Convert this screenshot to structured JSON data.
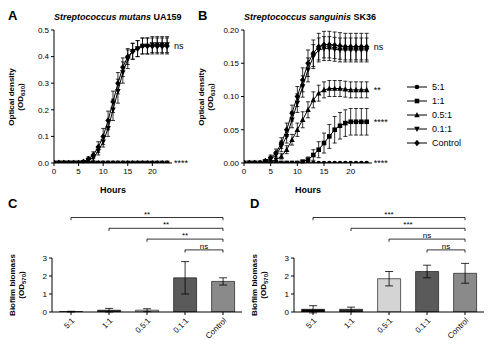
{
  "chart_data": [
    {
      "type": "line",
      "panel": "A",
      "title": "Streptococcus mutans UA159",
      "xlabel": "Hours",
      "ylabel": "Optical density (OD630)",
      "xlim": [
        0,
        24
      ],
      "xticks": [
        0,
        5,
        10,
        15,
        20
      ],
      "ylim": [
        0,
        0.5
      ],
      "yticks": [
        {
          "value": 0,
          "label": "0.0"
        },
        0.1,
        0.2,
        0.3,
        0.4,
        0.5
      ],
      "x": [
        0,
        1,
        2,
        3,
        4,
        5,
        6,
        7,
        8,
        9,
        10,
        11,
        12,
        13,
        14,
        15,
        16,
        17,
        18,
        19,
        20,
        21,
        22,
        23
      ],
      "series": [
        {
          "name": "5:1",
          "color": "#000000",
          "marker": "circle",
          "values": [
            0,
            0,
            0,
            0,
            0,
            0,
            0,
            0,
            0,
            0,
            0,
            0,
            0,
            0,
            0,
            0,
            0,
            0,
            0,
            0,
            0,
            0,
            0,
            0
          ],
          "errors": [
            0,
            0,
            0,
            0,
            0,
            0,
            0,
            0,
            0,
            0,
            0,
            0,
            0,
            0,
            0,
            0,
            0,
            0,
            0,
            0,
            0,
            0,
            0,
            0
          ]
        },
        {
          "name": "1:1",
          "color": "#000000",
          "marker": "square",
          "values": [
            0,
            0,
            0,
            0,
            0,
            0,
            0,
            0,
            0,
            0,
            0,
            0,
            0,
            0,
            0,
            0,
            0,
            0,
            0,
            0,
            0,
            0,
            0,
            0
          ],
          "errors": [
            0,
            0,
            0,
            0,
            0,
            0,
            0,
            0,
            0,
            0,
            0,
            0,
            0,
            0,
            0,
            0,
            0,
            0,
            0,
            0,
            0,
            0,
            0,
            0
          ]
        },
        {
          "name": "0.5:1",
          "color": "#000000",
          "marker": "triangle",
          "values": [
            0,
            0,
            0,
            0,
            0,
            0,
            0,
            0,
            0,
            0,
            0,
            0,
            0,
            0,
            0,
            0,
            0,
            0,
            0,
            0,
            0,
            0,
            0,
            0
          ],
          "errors": [
            0,
            0,
            0,
            0,
            0,
            0,
            0,
            0,
            0,
            0,
            0,
            0,
            0,
            0,
            0,
            0,
            0,
            0,
            0,
            0,
            0,
            0,
            0,
            0
          ]
        },
        {
          "name": "0.1:1",
          "color": "#000000",
          "marker": "triangle_down",
          "values": [
            0,
            0,
            0,
            0,
            0,
            0,
            0.003,
            0.01,
            0.02,
            0.045,
            0.08,
            0.13,
            0.2,
            0.27,
            0.34,
            0.39,
            0.42,
            0.43,
            0.44,
            0.44,
            0.445,
            0.445,
            0.445,
            0.445
          ],
          "errors": [
            0,
            0,
            0,
            0,
            0,
            0,
            0.002,
            0.005,
            0.01,
            0.015,
            0.02,
            0.03,
            0.04,
            0.045,
            0.04,
            0.035,
            0.03,
            0.03,
            0.03,
            0.03,
            0.03,
            0.03,
            0.03,
            0.03
          ]
        },
        {
          "name": "Control",
          "color": "#000000",
          "marker": "diamond",
          "values": [
            0,
            0,
            0,
            0,
            0,
            0,
            0.005,
            0.015,
            0.03,
            0.06,
            0.1,
            0.16,
            0.23,
            0.3,
            0.36,
            0.4,
            0.42,
            0.43,
            0.44,
            0.44,
            0.44,
            0.44,
            0.44,
            0.44
          ],
          "errors": [
            0,
            0,
            0,
            0,
            0,
            0,
            0.003,
            0.008,
            0.012,
            0.02,
            0.03,
            0.035,
            0.04,
            0.04,
            0.035,
            0.03,
            0.03,
            0.03,
            0.03,
            0.03,
            0.03,
            0.03,
            0.03,
            0.03
          ]
        }
      ],
      "annotations": [
        {
          "text": "ns",
          "x": 23,
          "y": 0.44
        },
        {
          "text": "****",
          "x": 23,
          "y": 0
        }
      ]
    },
    {
      "type": "line",
      "panel": "B",
      "title": "Streptococcus sanguinis SK36",
      "xlabel": "Hours",
      "ylabel": "Optical density (OD630)",
      "xlim": [
        0,
        24
      ],
      "xticks": [
        0,
        5,
        10,
        15,
        20
      ],
      "ylim": [
        0,
        0.2
      ],
      "yticks": [
        {
          "value": 0,
          "label": "0.00"
        },
        0.05,
        {
          "value": 0.1,
          "label": "0.10"
        },
        0.15,
        {
          "value": 0.2,
          "label": "0.20"
        }
      ],
      "legend": "right",
      "x": [
        0,
        1,
        2,
        3,
        4,
        5,
        6,
        7,
        8,
        9,
        10,
        11,
        12,
        13,
        14,
        15,
        16,
        17,
        18,
        19,
        20,
        21,
        22,
        23
      ],
      "series": [
        {
          "name": "5:1",
          "color": "#000000",
          "marker": "circle",
          "values": [
            0,
            0,
            0,
            0,
            0,
            0,
            0,
            0,
            0,
            0,
            0,
            0,
            0,
            0,
            0,
            0,
            0,
            0,
            0,
            0,
            0,
            0,
            0,
            0
          ],
          "errors": [
            0,
            0,
            0,
            0,
            0,
            0,
            0,
            0,
            0,
            0,
            0,
            0,
            0,
            0,
            0,
            0,
            0,
            0,
            0,
            0,
            0,
            0,
            0,
            0
          ]
        },
        {
          "name": "1:1",
          "color": "#000000",
          "marker": "square",
          "values": [
            0,
            0,
            0,
            0,
            0,
            0,
            0,
            0,
            0,
            0,
            0,
            0.002,
            0.005,
            0.012,
            0.02,
            0.03,
            0.04,
            0.05,
            0.056,
            0.06,
            0.062,
            0.062,
            0.062,
            0.062
          ],
          "errors": [
            0,
            0,
            0,
            0,
            0,
            0,
            0,
            0,
            0,
            0,
            0,
            0.002,
            0.004,
            0.008,
            0.012,
            0.015,
            0.018,
            0.02,
            0.02,
            0.02,
            0.02,
            0.02,
            0.02,
            0.02
          ]
        },
        {
          "name": "0.5:1",
          "color": "#000000",
          "marker": "triangle",
          "values": [
            0,
            0,
            0,
            0,
            0,
            0.002,
            0.005,
            0.01,
            0.02,
            0.035,
            0.05,
            0.065,
            0.08,
            0.095,
            0.105,
            0.11,
            0.112,
            0.112,
            0.112,
            0.111,
            0.11,
            0.11,
            0.11,
            0.11
          ],
          "errors": [
            0,
            0,
            0,
            0,
            0,
            0.001,
            0.002,
            0.004,
            0.006,
            0.008,
            0.01,
            0.012,
            0.012,
            0.012,
            0.012,
            0.012,
            0.012,
            0.012,
            0.012,
            0.012,
            0.012,
            0.012,
            0.012,
            0.012
          ]
        },
        {
          "name": "0.1:1",
          "color": "#000000",
          "marker": "triangle_down",
          "values": [
            0,
            0,
            0,
            0,
            0.002,
            0.006,
            0.012,
            0.025,
            0.04,
            0.065,
            0.09,
            0.115,
            0.14,
            0.16,
            0.17,
            0.172,
            0.172,
            0.171,
            0.17,
            0.17,
            0.17,
            0.17,
            0.17,
            0.17
          ],
          "errors": [
            0,
            0,
            0,
            0,
            0.001,
            0.003,
            0.005,
            0.008,
            0.01,
            0.012,
            0.014,
            0.016,
            0.018,
            0.018,
            0.018,
            0.018,
            0.018,
            0.018,
            0.018,
            0.018,
            0.018,
            0.018,
            0.018,
            0.018
          ]
        },
        {
          "name": "Control",
          "color": "#000000",
          "marker": "diamond",
          "values": [
            0,
            0,
            0,
            0,
            0.003,
            0.008,
            0.015,
            0.03,
            0.05,
            0.075,
            0.1,
            0.125,
            0.15,
            0.165,
            0.175,
            0.178,
            0.178,
            0.177,
            0.176,
            0.175,
            0.175,
            0.175,
            0.175,
            0.175
          ],
          "errors": [
            0,
            0,
            0,
            0,
            0.002,
            0.004,
            0.006,
            0.008,
            0.01,
            0.012,
            0.015,
            0.018,
            0.02,
            0.02,
            0.02,
            0.02,
            0.02,
            0.02,
            0.02,
            0.02,
            0.02,
            0.02,
            0.02,
            0.02
          ]
        }
      ],
      "annotations": [
        {
          "text": "ns",
          "x": 23,
          "y": 0.175
        },
        {
          "text": "**",
          "x": 23,
          "y": 0.11
        },
        {
          "text": "****",
          "x": 23,
          "y": 0.062
        },
        {
          "text": "****",
          "x": 23,
          "y": 0
        }
      ]
    },
    {
      "type": "bar",
      "panel": "C",
      "ylabel": "Biofilm biomass (OD570)",
      "categories": [
        "5:1",
        "1:1",
        "0.5:1",
        "0.1:1",
        "Control"
      ],
      "values": [
        0.02,
        0.1,
        0.1,
        1.9,
        1.7
      ],
      "errors": [
        0.02,
        0.1,
        0.08,
        0.9,
        0.2
      ],
      "colors": [
        "#000000",
        "#2b2b2b",
        "#d4d4d4",
        "#5a5a5a",
        "#8a8a8a"
      ],
      "ylim": [
        0,
        3
      ],
      "yticks": [
        0,
        1,
        2,
        3
      ],
      "comparisons": [
        {
          "from": "5:1",
          "to": "Control",
          "label": "**"
        },
        {
          "from": "1:1",
          "to": "Control",
          "label": "**"
        },
        {
          "from": "0.5:1",
          "to": "Control",
          "label": "**"
        },
        {
          "from": "0.1:1",
          "to": "Control",
          "label": "ns"
        }
      ]
    },
    {
      "type": "bar",
      "panel": "D",
      "ylabel": "Biofilm biomass (OD570)",
      "categories": [
        "5:1",
        "1:1",
        "0.5:1",
        "0.1:1",
        "Control"
      ],
      "values": [
        0.15,
        0.15,
        1.85,
        2.25,
        2.15
      ],
      "errors": [
        0.2,
        0.12,
        0.4,
        0.35,
        0.55
      ],
      "colors": [
        "#000000",
        "#2b2b2b",
        "#d4d4d4",
        "#5a5a5a",
        "#8a8a8a"
      ],
      "ylim": [
        0,
        3
      ],
      "yticks": [
        0,
        1,
        2,
        3
      ],
      "comparisons": [
        {
          "from": "5:1",
          "to": "Control",
          "label": "***"
        },
        {
          "from": "1:1",
          "to": "Control",
          "label": "***"
        },
        {
          "from": "0.5:1",
          "to": "Control",
          "label": "ns"
        },
        {
          "from": "0.1:1",
          "to": "Control",
          "label": "ns"
        }
      ]
    }
  ]
}
